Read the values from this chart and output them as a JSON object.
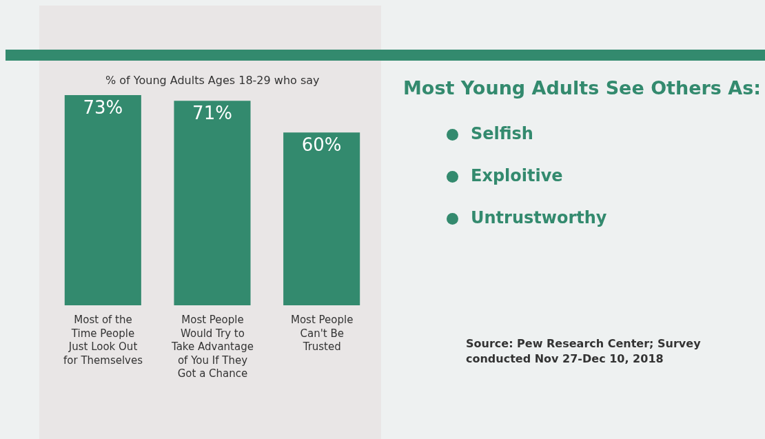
{
  "chart_data": {
    "type": "bar",
    "title": "Most Young Adults See Others As:",
    "subtitle": "% of Young Adults Ages 18-29 who say",
    "categories": [
      "Most of the Time People Just Look Out for Themselves",
      "Most People Would Try to Take Advantage of You If They Got a Chance",
      "Most People Can't Be Trusted"
    ],
    "values": [
      73,
      71,
      60
    ],
    "value_labels": [
      "73%",
      "71%",
      "60%"
    ],
    "color": "#338a6e",
    "ylim": [
      0,
      73
    ],
    "tick_labels": "x",
    "grid": false,
    "legend": false,
    "annotations": [
      "Selfish",
      "Exploitive",
      "Untrustworthy",
      "Source: Pew Research Center; Survey conducted Nov 27-Dec 10, 2018"
    ]
  }
}
